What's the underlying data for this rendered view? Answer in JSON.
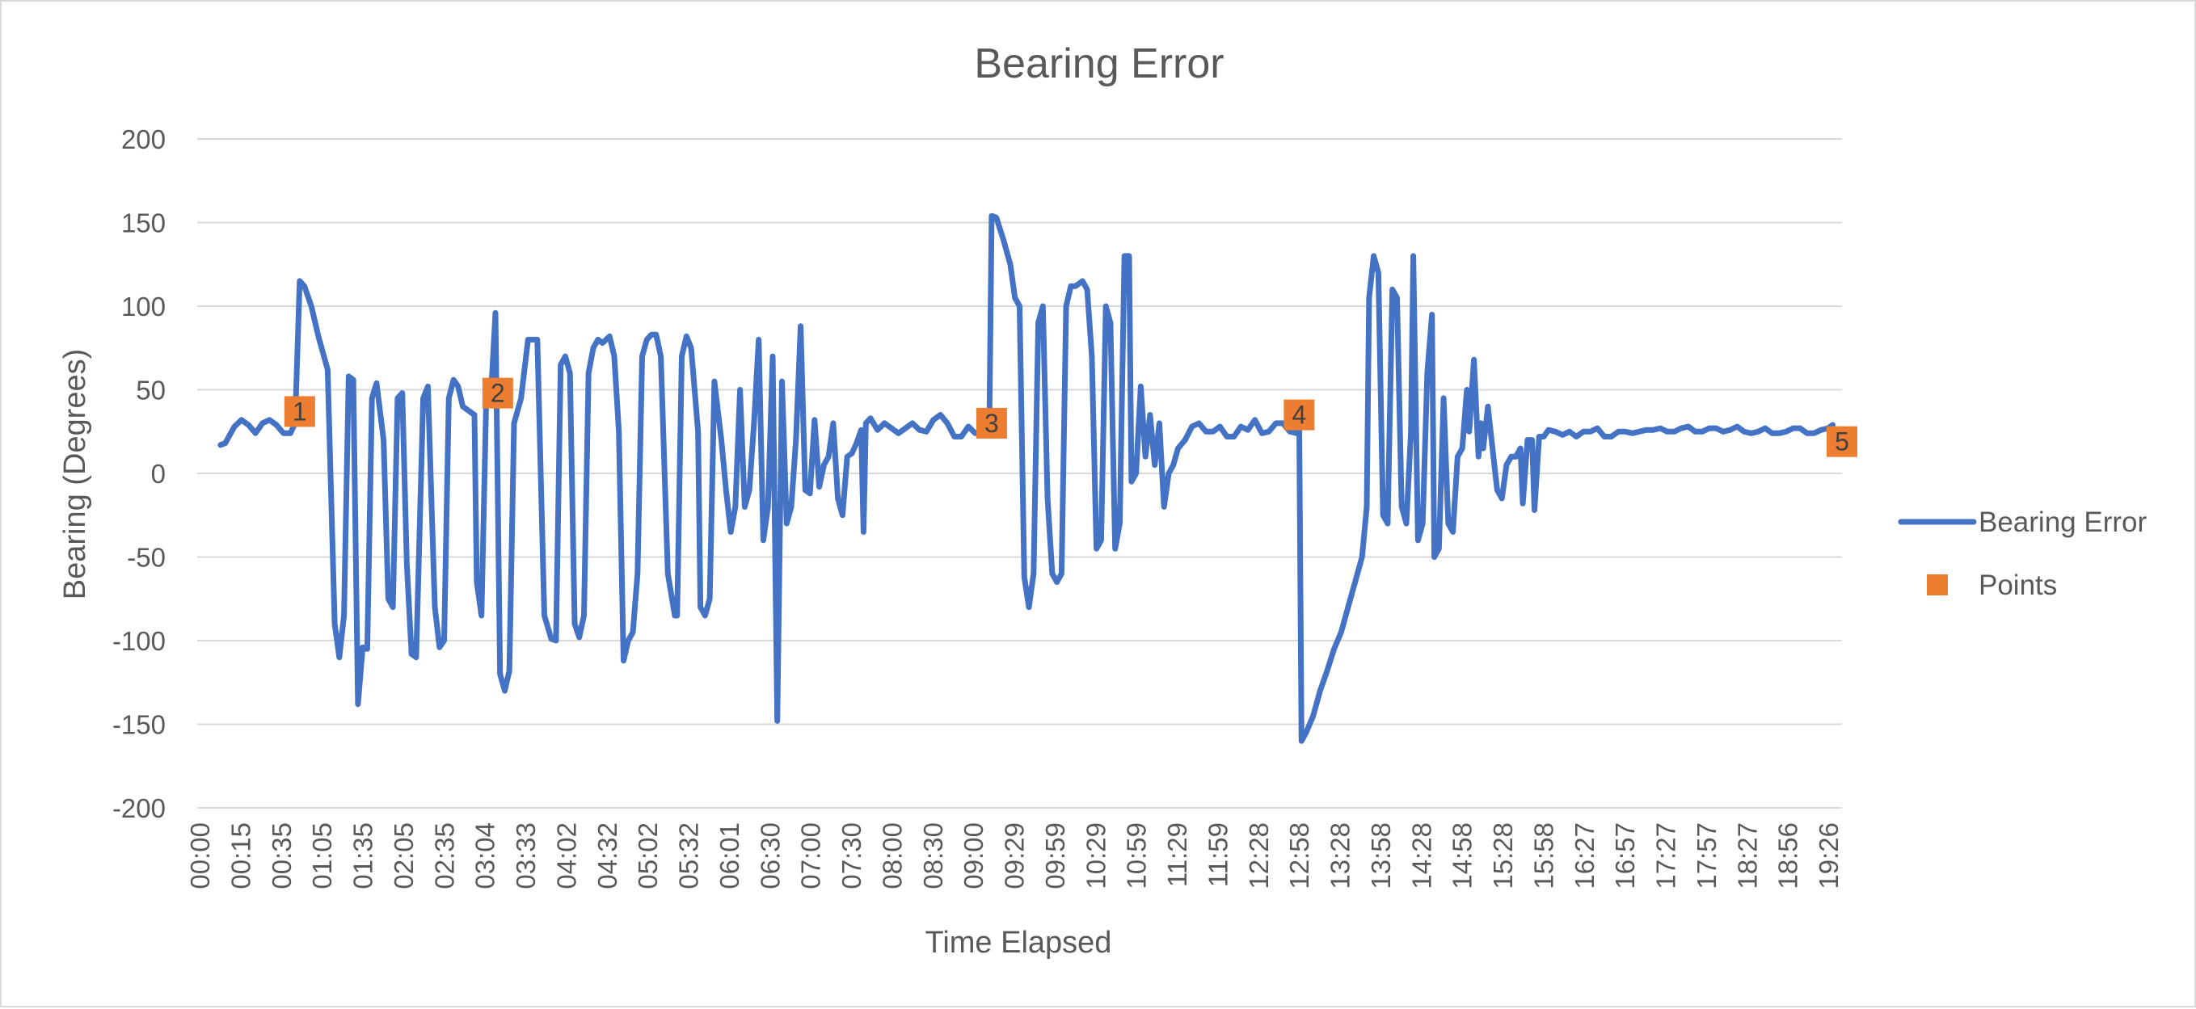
{
  "chart_data": {
    "type": "line",
    "title": "Bearing Error",
    "xlabel": "Time Elapsed",
    "ylabel": "Bearing (Degrees)",
    "ylim": [
      -200,
      200
    ],
    "yticks": [
      200,
      150,
      100,
      50,
      0,
      -50,
      -100,
      -150,
      -200
    ],
    "grid": true,
    "legend_position": "right",
    "x_tick_labels": [
      "00:00",
      "00:15",
      "00:35",
      "01:05",
      "01:35",
      "02:05",
      "02:35",
      "03:04",
      "03:33",
      "04:02",
      "04:32",
      "05:02",
      "05:32",
      "06:01",
      "06:30",
      "07:00",
      "07:30",
      "08:00",
      "08:30",
      "09:00",
      "09:29",
      "09:59",
      "10:29",
      "10:59",
      "11:29",
      "11:59",
      "12:28",
      "12:58",
      "13:28",
      "13:58",
      "14:28",
      "14:58",
      "15:28",
      "15:58",
      "16:27",
      "16:57",
      "17:27",
      "17:57",
      "18:27",
      "18:56",
      "19:26"
    ],
    "series": [
      {
        "name": "Bearing Error",
        "color": "#4472c4",
        "points": [
          [
            0,
            17
          ],
          [
            0.1,
            18
          ],
          [
            0.3,
            28
          ],
          [
            0.45,
            32
          ],
          [
            0.6,
            29
          ],
          [
            0.75,
            24
          ],
          [
            0.9,
            30
          ],
          [
            1.05,
            32
          ],
          [
            1.2,
            29
          ],
          [
            1.35,
            24
          ],
          [
            1.5,
            24
          ],
          [
            1.6,
            30
          ],
          [
            1.7,
            115
          ],
          [
            1.8,
            112
          ],
          [
            1.95,
            100
          ],
          [
            2.1,
            82
          ],
          [
            2.3,
            62
          ],
          [
            2.45,
            -90
          ],
          [
            2.55,
            -110
          ],
          [
            2.65,
            -85
          ],
          [
            2.75,
            58
          ],
          [
            2.85,
            56
          ],
          [
            2.95,
            -138
          ],
          [
            3.05,
            -104
          ],
          [
            3.15,
            -105
          ],
          [
            3.25,
            45
          ],
          [
            3.35,
            54
          ],
          [
            3.5,
            20
          ],
          [
            3.6,
            -75
          ],
          [
            3.7,
            -80
          ],
          [
            3.8,
            45
          ],
          [
            3.9,
            48
          ],
          [
            4.0,
            -55
          ],
          [
            4.1,
            -108
          ],
          [
            4.2,
            -110
          ],
          [
            4.35,
            45
          ],
          [
            4.45,
            52
          ],
          [
            4.6,
            -80
          ],
          [
            4.7,
            -104
          ],
          [
            4.8,
            -100
          ],
          [
            4.9,
            45
          ],
          [
            5.0,
            56
          ],
          [
            5.1,
            52
          ],
          [
            5.2,
            40
          ],
          [
            5.35,
            37
          ],
          [
            5.45,
            35
          ],
          [
            5.5,
            -65
          ],
          [
            5.6,
            -85
          ],
          [
            5.7,
            40
          ],
          [
            5.8,
            45
          ],
          [
            5.9,
            96
          ],
          [
            6.0,
            -120
          ],
          [
            6.1,
            -130
          ],
          [
            6.2,
            -118
          ],
          [
            6.3,
            30
          ],
          [
            6.45,
            45
          ],
          [
            6.6,
            80
          ],
          [
            6.7,
            80
          ],
          [
            6.8,
            80
          ],
          [
            6.95,
            -85
          ],
          [
            7.1,
            -99
          ],
          [
            7.2,
            -100
          ],
          [
            7.3,
            65
          ],
          [
            7.4,
            70
          ],
          [
            7.5,
            60
          ],
          [
            7.6,
            -90
          ],
          [
            7.7,
            -98
          ],
          [
            7.8,
            -85
          ],
          [
            7.9,
            60
          ],
          [
            8.0,
            75
          ],
          [
            8.1,
            80
          ],
          [
            8.2,
            78
          ],
          [
            8.35,
            82
          ],
          [
            8.45,
            70
          ],
          [
            8.55,
            25
          ],
          [
            8.65,
            -112
          ],
          [
            8.75,
            -100
          ],
          [
            8.85,
            -95
          ],
          [
            8.95,
            -60
          ],
          [
            9.05,
            70
          ],
          [
            9.15,
            80
          ],
          [
            9.25,
            83
          ],
          [
            9.35,
            83
          ],
          [
            9.45,
            70
          ],
          [
            9.6,
            -60
          ],
          [
            9.75,
            -85
          ],
          [
            9.8,
            -85
          ],
          [
            9.9,
            70
          ],
          [
            10.0,
            82
          ],
          [
            10.1,
            75
          ],
          [
            10.25,
            25
          ],
          [
            10.3,
            -80
          ],
          [
            10.4,
            -85
          ],
          [
            10.5,
            -75
          ],
          [
            10.6,
            55
          ],
          [
            10.75,
            20
          ],
          [
            10.85,
            -10
          ],
          [
            10.95,
            -35
          ],
          [
            11.05,
            -20
          ],
          [
            11.15,
            50
          ],
          [
            11.25,
            -20
          ],
          [
            11.35,
            -10
          ],
          [
            11.45,
            30
          ],
          [
            11.55,
            80
          ],
          [
            11.65,
            -40
          ],
          [
            11.75,
            -20
          ],
          [
            11.85,
            70
          ],
          [
            11.95,
            -148
          ],
          [
            12.05,
            55
          ],
          [
            12.15,
            -30
          ],
          [
            12.25,
            -20
          ],
          [
            12.35,
            20
          ],
          [
            12.45,
            88
          ],
          [
            12.55,
            -10
          ],
          [
            12.65,
            -12
          ],
          [
            12.75,
            32
          ],
          [
            12.85,
            -8
          ],
          [
            12.95,
            5
          ],
          [
            13.05,
            10
          ],
          [
            13.15,
            30
          ],
          [
            13.25,
            -15
          ],
          [
            13.35,
            -25
          ],
          [
            13.45,
            10
          ],
          [
            13.55,
            12
          ],
          [
            13.65,
            18
          ],
          [
            13.75,
            26
          ],
          [
            13.8,
            -35
          ],
          [
            13.85,
            30
          ],
          [
            13.95,
            33
          ],
          [
            14.1,
            26
          ],
          [
            14.25,
            30
          ],
          [
            14.4,
            27
          ],
          [
            14.55,
            24
          ],
          [
            14.7,
            27
          ],
          [
            14.85,
            30
          ],
          [
            15.0,
            26
          ],
          [
            15.15,
            25
          ],
          [
            15.3,
            32
          ],
          [
            15.45,
            35
          ],
          [
            15.6,
            30
          ],
          [
            15.75,
            22
          ],
          [
            15.9,
            22
          ],
          [
            16.05,
            28
          ],
          [
            16.2,
            24
          ],
          [
            16.4,
            24
          ],
          [
            16.5,
            25
          ],
          [
            16.55,
            154
          ],
          [
            16.65,
            153
          ],
          [
            16.8,
            140
          ],
          [
            16.95,
            125
          ],
          [
            17.05,
            105
          ],
          [
            17.15,
            100
          ],
          [
            17.25,
            -62
          ],
          [
            17.35,
            -80
          ],
          [
            17.45,
            -60
          ],
          [
            17.55,
            90
          ],
          [
            17.65,
            100
          ],
          [
            17.75,
            -15
          ],
          [
            17.85,
            -60
          ],
          [
            17.95,
            -65
          ],
          [
            18.05,
            -60
          ],
          [
            18.15,
            100
          ],
          [
            18.25,
            112
          ],
          [
            18.35,
            112
          ],
          [
            18.5,
            115
          ],
          [
            18.6,
            110
          ],
          [
            18.7,
            70
          ],
          [
            18.8,
            -45
          ],
          [
            18.9,
            -40
          ],
          [
            19.0,
            100
          ],
          [
            19.1,
            90
          ],
          [
            19.2,
            -45
          ],
          [
            19.3,
            -30
          ],
          [
            19.4,
            130
          ],
          [
            19.5,
            130
          ],
          [
            19.55,
            -5
          ],
          [
            19.65,
            0
          ],
          [
            19.75,
            52
          ],
          [
            19.85,
            10
          ],
          [
            19.95,
            35
          ],
          [
            20.05,
            5
          ],
          [
            20.15,
            30
          ],
          [
            20.25,
            -20
          ],
          [
            20.35,
            0
          ],
          [
            20.45,
            5
          ],
          [
            20.55,
            15
          ],
          [
            20.7,
            20
          ],
          [
            20.85,
            28
          ],
          [
            21.0,
            30
          ],
          [
            21.15,
            25
          ],
          [
            21.3,
            25
          ],
          [
            21.45,
            28
          ],
          [
            21.6,
            22
          ],
          [
            21.75,
            22
          ],
          [
            21.9,
            28
          ],
          [
            22.05,
            26
          ],
          [
            22.2,
            32
          ],
          [
            22.35,
            24
          ],
          [
            22.5,
            25
          ],
          [
            22.65,
            30
          ],
          [
            22.8,
            30
          ],
          [
            22.95,
            25
          ],
          [
            23.1,
            24
          ],
          [
            23.15,
            34
          ],
          [
            23.2,
            -160
          ],
          [
            23.3,
            -155
          ],
          [
            23.45,
            -145
          ],
          [
            23.6,
            -130
          ],
          [
            23.75,
            -118
          ],
          [
            23.9,
            -105
          ],
          [
            24.05,
            -95
          ],
          [
            24.2,
            -80
          ],
          [
            24.35,
            -65
          ],
          [
            24.5,
            -50
          ],
          [
            24.6,
            -20
          ],
          [
            24.65,
            105
          ],
          [
            24.75,
            130
          ],
          [
            24.85,
            120
          ],
          [
            24.95,
            -25
          ],
          [
            25.05,
            -30
          ],
          [
            25.15,
            110
          ],
          [
            25.25,
            105
          ],
          [
            25.35,
            -20
          ],
          [
            25.45,
            -30
          ],
          [
            25.55,
            25
          ],
          [
            25.6,
            130
          ],
          [
            25.7,
            -40
          ],
          [
            25.8,
            -30
          ],
          [
            25.9,
            60
          ],
          [
            26.0,
            95
          ],
          [
            26.05,
            -50
          ],
          [
            26.15,
            -45
          ],
          [
            26.25,
            45
          ],
          [
            26.35,
            -30
          ],
          [
            26.45,
            -35
          ],
          [
            26.55,
            10
          ],
          [
            26.65,
            15
          ],
          [
            26.75,
            50
          ],
          [
            26.8,
            25
          ],
          [
            26.9,
            68
          ],
          [
            27.0,
            10
          ],
          [
            27.05,
            30
          ],
          [
            27.1,
            15
          ],
          [
            27.2,
            40
          ],
          [
            27.3,
            15
          ],
          [
            27.4,
            -10
          ],
          [
            27.5,
            -15
          ],
          [
            27.6,
            5
          ],
          [
            27.7,
            10
          ],
          [
            27.8,
            10
          ],
          [
            27.9,
            15
          ],
          [
            27.95,
            -18
          ],
          [
            28.05,
            20
          ],
          [
            28.15,
            20
          ],
          [
            28.2,
            -22
          ],
          [
            28.3,
            22
          ],
          [
            28.4,
            22
          ],
          [
            28.5,
            26
          ],
          [
            28.65,
            25
          ],
          [
            28.8,
            23
          ],
          [
            28.95,
            25
          ],
          [
            29.1,
            22
          ],
          [
            29.25,
            25
          ],
          [
            29.4,
            25
          ],
          [
            29.55,
            27
          ],
          [
            29.7,
            22
          ],
          [
            29.85,
            22
          ],
          [
            30.0,
            25
          ],
          [
            30.15,
            25
          ],
          [
            30.3,
            24
          ],
          [
            30.45,
            25
          ],
          [
            30.6,
            26
          ],
          [
            30.75,
            26
          ],
          [
            30.9,
            27
          ],
          [
            31.05,
            25
          ],
          [
            31.2,
            25
          ],
          [
            31.35,
            27
          ],
          [
            31.5,
            28
          ],
          [
            31.65,
            25
          ],
          [
            31.8,
            25
          ],
          [
            31.95,
            27
          ],
          [
            32.1,
            27
          ],
          [
            32.25,
            25
          ],
          [
            32.4,
            26
          ],
          [
            32.55,
            28
          ],
          [
            32.7,
            25
          ],
          [
            32.85,
            24
          ],
          [
            33.0,
            25
          ],
          [
            33.15,
            27
          ],
          [
            33.3,
            24
          ],
          [
            33.45,
            24
          ],
          [
            33.6,
            25
          ],
          [
            33.75,
            27
          ],
          [
            33.9,
            27
          ],
          [
            34.05,
            24
          ],
          [
            34.2,
            24
          ],
          [
            34.35,
            26
          ],
          [
            34.5,
            27
          ],
          [
            34.6,
            29
          ]
        ]
      },
      {
        "name": "Points",
        "color": "#ed7d31",
        "points": [
          {
            "x": 1.7,
            "y": 37,
            "label": "1"
          },
          {
            "x": 5.95,
            "y": 48,
            "label": "2"
          },
          {
            "x": 16.55,
            "y": 30,
            "label": "3"
          },
          {
            "x": 23.15,
            "y": 35,
            "label": "4"
          },
          {
            "x": 34.8,
            "y": 19,
            "label": "5"
          }
        ]
      }
    ]
  }
}
